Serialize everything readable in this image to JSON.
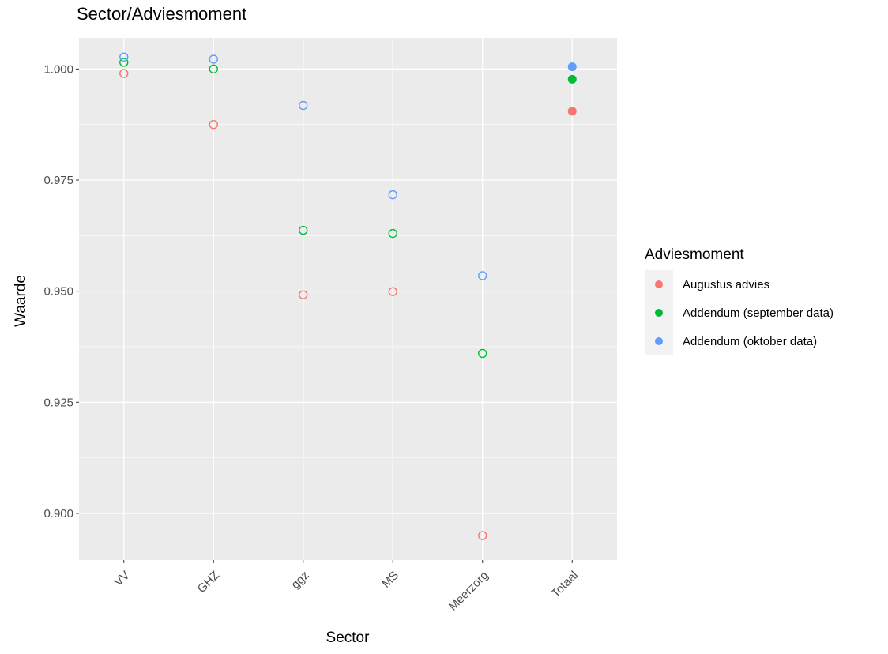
{
  "chart_data": {
    "type": "scatter",
    "title": "Sector/Adviesmoment",
    "xlabel": "Sector",
    "ylabel": "Waarde",
    "categories": [
      "VV",
      "GHZ",
      "ggz",
      "MS",
      "Meerzorg",
      "Totaal"
    ],
    "ylim": [
      0.8895,
      1.007
    ],
    "yticks": [
      0.9,
      0.925,
      0.95,
      0.975,
      1.0
    ],
    "yticklabels": [
      "0.900",
      "0.925",
      "0.950",
      "0.975",
      "1.000"
    ],
    "grid": true,
    "legend": {
      "title": "Adviesmoment",
      "position": "right"
    },
    "series": [
      {
        "name": "Augustus advies",
        "color": "#F8766D",
        "values": [
          0.999,
          0.9875,
          0.9492,
          0.9499,
          0.895,
          0.9905
        ],
        "filled": [
          false,
          false,
          false,
          false,
          false,
          true
        ]
      },
      {
        "name": "Addendum (september data)",
        "color": "#00BA38",
        "values": [
          1.0015,
          1.0,
          0.9637,
          0.963,
          0.936,
          0.9977
        ],
        "filled": [
          false,
          false,
          false,
          false,
          false,
          true
        ]
      },
      {
        "name": "Addendum (oktober data)",
        "color": "#619CFF",
        "values": [
          1.0027,
          1.0022,
          0.9918,
          0.9717,
          0.9535,
          1.0005
        ],
        "filled": [
          false,
          false,
          false,
          false,
          false,
          true
        ]
      }
    ]
  }
}
